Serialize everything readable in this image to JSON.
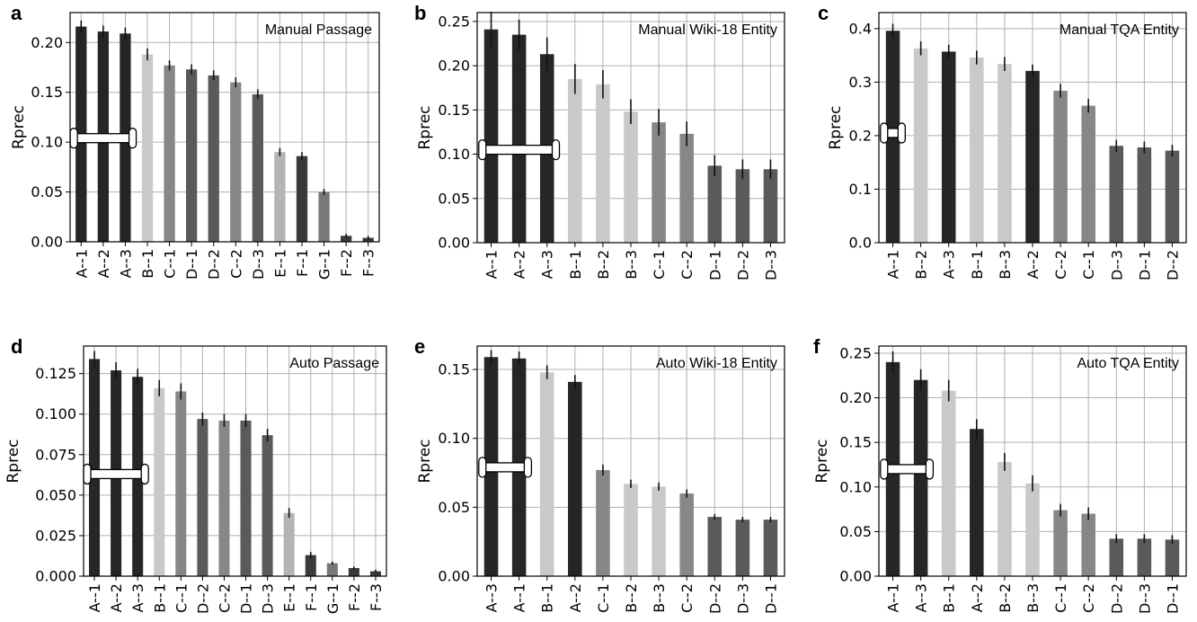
{
  "chart_data": [
    {
      "panel": "a",
      "type": "bar",
      "title": "Manual Passage",
      "ylabel": "Rprec",
      "ylim": [
        0,
        0.23
      ],
      "yticks": [
        0.0,
        0.05,
        0.1,
        0.15,
        0.2
      ],
      "ytick_labels": [
        "0.00",
        "0.05",
        "0.10",
        "0.15",
        "0.20"
      ],
      "grid": true,
      "break_marker_y": 0.104,
      "categories": [
        "A--1",
        "A--2",
        "A--3",
        "B--1",
        "C--1",
        "D--1",
        "D--2",
        "C--2",
        "D--3",
        "E--1",
        "F--1",
        "G--1",
        "F--2",
        "F--3"
      ],
      "values": [
        0.216,
        0.211,
        0.209,
        0.188,
        0.177,
        0.173,
        0.167,
        0.16,
        0.148,
        0.09,
        0.086,
        0.05,
        0.006,
        0.004
      ],
      "errors": [
        0.006,
        0.006,
        0.006,
        0.006,
        0.005,
        0.005,
        0.005,
        0.005,
        0.005,
        0.004,
        0.004,
        0.003,
        0.002,
        0.002
      ],
      "colors": [
        "#262626",
        "#262626",
        "#262626",
        "#c9c9c9",
        "#878787",
        "#5a5a5a",
        "#5a5a5a",
        "#878787",
        "#5a5a5a",
        "#b4b4b4",
        "#3a3a3a",
        "#787878",
        "#3a3a3a",
        "#3a3a3a"
      ]
    },
    {
      "panel": "b",
      "type": "bar",
      "title": "Manual Wiki-18 Entity",
      "ylabel": "Rprec",
      "ylim": [
        0,
        0.26
      ],
      "yticks": [
        0.0,
        0.05,
        0.1,
        0.15,
        0.2,
        0.25
      ],
      "ytick_labels": [
        "0.00",
        "0.05",
        "0.10",
        "0.15",
        "0.20",
        "0.25"
      ],
      "grid": true,
      "break_marker_y": 0.105,
      "categories": [
        "A--1",
        "A--2",
        "A--3",
        "B--1",
        "B--2",
        "B--3",
        "C--1",
        "C--2",
        "D--1",
        "D--2",
        "D--3"
      ],
      "values": [
        0.241,
        0.235,
        0.213,
        0.185,
        0.179,
        0.148,
        0.136,
        0.123,
        0.087,
        0.083,
        0.083
      ],
      "errors": [
        0.02,
        0.017,
        0.019,
        0.017,
        0.016,
        0.014,
        0.015,
        0.014,
        0.012,
        0.011,
        0.011
      ],
      "colors": [
        "#262626",
        "#262626",
        "#262626",
        "#c9c9c9",
        "#c9c9c9",
        "#c9c9c9",
        "#878787",
        "#878787",
        "#5a5a5a",
        "#5a5a5a",
        "#5a5a5a"
      ]
    },
    {
      "panel": "c",
      "type": "bar",
      "title": "Manual TQA Entity",
      "ylabel": "Rprec",
      "ylim": [
        0,
        0.43
      ],
      "yticks": [
        0.0,
        0.1,
        0.2,
        0.3,
        0.4
      ],
      "ytick_labels": [
        "0.0",
        "0.1",
        "0.2",
        "0.3",
        "0.4"
      ],
      "grid": true,
      "break_marker_y": 0.205,
      "categories": [
        "A--1",
        "B--2",
        "A--3",
        "B--1",
        "B--3",
        "A--2",
        "C--2",
        "C--1",
        "D--3",
        "D--1",
        "D--2"
      ],
      "values": [
        0.396,
        0.363,
        0.357,
        0.346,
        0.334,
        0.321,
        0.284,
        0.256,
        0.181,
        0.178,
        0.172
      ],
      "errors": [
        0.013,
        0.013,
        0.013,
        0.013,
        0.013,
        0.012,
        0.013,
        0.013,
        0.011,
        0.011,
        0.011
      ],
      "colors": [
        "#262626",
        "#c9c9c9",
        "#262626",
        "#c9c9c9",
        "#c9c9c9",
        "#262626",
        "#878787",
        "#878787",
        "#5a5a5a",
        "#5a5a5a",
        "#5a5a5a"
      ]
    },
    {
      "panel": "d",
      "type": "bar",
      "title": "Auto Passage",
      "ylabel": "Rprec",
      "ylim": [
        0,
        0.142
      ],
      "yticks": [
        0.0,
        0.025,
        0.05,
        0.075,
        0.1,
        0.125
      ],
      "ytick_labels": [
        "0.000",
        "0.025",
        "0.050",
        "0.075",
        "0.100",
        "0.125"
      ],
      "grid": true,
      "break_marker_y": 0.063,
      "categories": [
        "A--1",
        "A--2",
        "A--3",
        "B--1",
        "C--1",
        "D--2",
        "C--2",
        "D--1",
        "D--3",
        "E--1",
        "F--1",
        "G--1",
        "F--2",
        "F--3"
      ],
      "values": [
        0.134,
        0.127,
        0.123,
        0.116,
        0.114,
        0.097,
        0.096,
        0.096,
        0.087,
        0.039,
        0.013,
        0.008,
        0.005,
        0.003
      ],
      "errors": [
        0.005,
        0.005,
        0.005,
        0.005,
        0.005,
        0.004,
        0.004,
        0.004,
        0.004,
        0.003,
        0.002,
        0.001,
        0.001,
        0.001
      ],
      "colors": [
        "#262626",
        "#262626",
        "#262626",
        "#c9c9c9",
        "#878787",
        "#5a5a5a",
        "#878787",
        "#5a5a5a",
        "#5a5a5a",
        "#b4b4b4",
        "#3a3a3a",
        "#787878",
        "#3a3a3a",
        "#3a3a3a"
      ]
    },
    {
      "panel": "e",
      "type": "bar",
      "title": "Auto Wiki-18 Entity",
      "ylabel": "Rprec",
      "ylim": [
        0,
        0.167
      ],
      "yticks": [
        0.0,
        0.05,
        0.1,
        0.15
      ],
      "ytick_labels": [
        "0.00",
        "0.05",
        "0.10",
        "0.15"
      ],
      "grid": true,
      "break_marker_y": 0.079,
      "categories": [
        "A--3",
        "A--1",
        "B--1",
        "A--2",
        "C--1",
        "B--2",
        "B--3",
        "C--2",
        "D--2",
        "D--3",
        "D--1"
      ],
      "values": [
        0.159,
        0.158,
        0.148,
        0.141,
        0.077,
        0.067,
        0.065,
        0.06,
        0.043,
        0.041,
        0.041
      ],
      "errors": [
        0.005,
        0.005,
        0.005,
        0.005,
        0.004,
        0.003,
        0.003,
        0.003,
        0.002,
        0.002,
        0.002
      ],
      "colors": [
        "#262626",
        "#262626",
        "#c9c9c9",
        "#262626",
        "#878787",
        "#c9c9c9",
        "#c9c9c9",
        "#878787",
        "#5a5a5a",
        "#5a5a5a",
        "#5a5a5a"
      ]
    },
    {
      "panel": "f",
      "type": "bar",
      "title": "Auto TQA Entity",
      "ylabel": "Rprec",
      "ylim": [
        0,
        0.258
      ],
      "yticks": [
        0.0,
        0.05,
        0.1,
        0.15,
        0.2,
        0.25
      ],
      "ytick_labels": [
        "0.00",
        "0.05",
        "0.10",
        "0.15",
        "0.20",
        "0.25"
      ],
      "grid": true,
      "break_marker_y": 0.12,
      "categories": [
        "A--1",
        "A--3",
        "B--1",
        "A--2",
        "B--2",
        "B--3",
        "C--1",
        "C--2",
        "D--2",
        "D--3",
        "D--1"
      ],
      "values": [
        0.24,
        0.22,
        0.208,
        0.165,
        0.128,
        0.104,
        0.074,
        0.07,
        0.042,
        0.042,
        0.041
      ],
      "errors": [
        0.012,
        0.012,
        0.012,
        0.011,
        0.01,
        0.009,
        0.007,
        0.007,
        0.005,
        0.005,
        0.005
      ],
      "colors": [
        "#262626",
        "#262626",
        "#c9c9c9",
        "#262626",
        "#c9c9c9",
        "#c9c9c9",
        "#878787",
        "#878787",
        "#5a5a5a",
        "#5a5a5a",
        "#5a5a5a"
      ]
    }
  ]
}
